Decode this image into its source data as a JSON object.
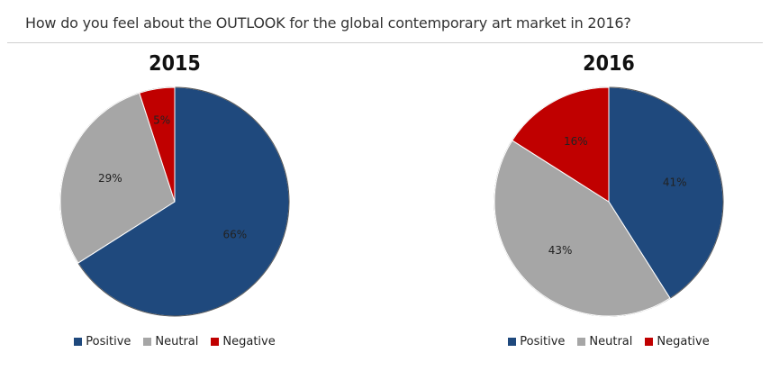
{
  "question": "How do you feel about the OUTLOOK for the global contemporary art market in 2016?",
  "colors": {
    "Positive": "#1f497d",
    "Neutral": "#a6a6a6",
    "Negative": "#c00000"
  },
  "chart_data": [
    {
      "type": "pie",
      "title": "2015",
      "categories": [
        "Positive",
        "Neutral",
        "Negative"
      ],
      "values": [
        66,
        29,
        5
      ],
      "labels": [
        "66%",
        "29%",
        "5%"
      ],
      "legend": [
        "Positive",
        "Neutral",
        "Negative"
      ],
      "legend_position": "bottom"
    },
    {
      "type": "pie",
      "title": "2016",
      "categories": [
        "Positive",
        "Neutral",
        "Negative"
      ],
      "values": [
        41,
        43,
        16
      ],
      "labels": [
        "41%",
        "43%",
        "16%"
      ],
      "legend": [
        "Positive",
        "Neutral",
        "Negative"
      ],
      "legend_position": "bottom"
    }
  ]
}
